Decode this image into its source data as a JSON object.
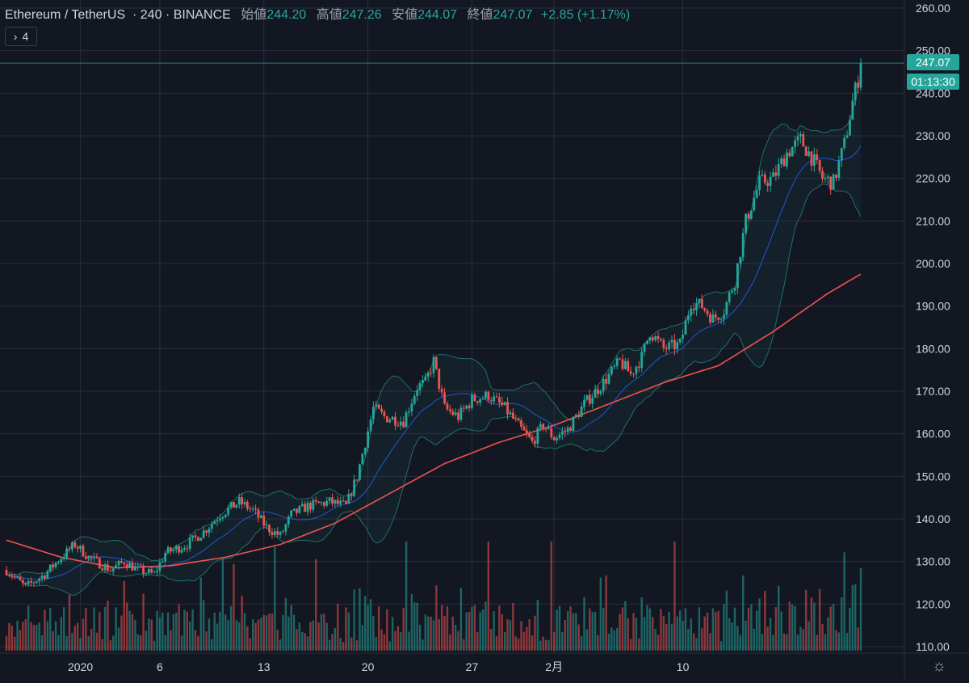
{
  "header": {
    "symbol": "Ethereum / TetherUS",
    "interval": "240",
    "exchange": "BINANCE",
    "open_label": "始値",
    "open_value": "244.20",
    "high_label": "高値",
    "high_value": "247.26",
    "low_label": "安値",
    "low_value": "244.07",
    "close_label": "終値",
    "close_value": "247.07",
    "change": "+2.85 (+1.17%)"
  },
  "indicator_toggle": {
    "label": "4"
  },
  "price_tag": "247.07",
  "countdown": "01:13:30",
  "colors": {
    "up": "#26a69a",
    "down": "#ef5350",
    "ma200": "#ef5350",
    "bb_basis": "#2962ff",
    "bb_band": "#1f6f68",
    "grid": "#2a2e39",
    "bg": "#131722"
  },
  "chart_data": {
    "type": "candlestick",
    "title": "Ethereum / TetherUS · 240 · BINANCE",
    "yaxis": {
      "min": 110,
      "max": 260,
      "ticks": [
        "260.00",
        "250.00",
        "240.00",
        "230.00",
        "220.00",
        "210.00",
        "200.00",
        "190.00",
        "180.00",
        "170.00",
        "160.00",
        "150.00",
        "140.00",
        "130.00",
        "120.00",
        "110.00"
      ]
    },
    "xaxis": {
      "ticks": [
        "2020",
        "6",
        "13",
        "20",
        "27",
        "2月",
        "10"
      ]
    },
    "price_anchors": [
      [
        0,
        128
      ],
      [
        7,
        124
      ],
      [
        14,
        127
      ],
      [
        20,
        131
      ],
      [
        25,
        134
      ],
      [
        30,
        131
      ],
      [
        38,
        128
      ],
      [
        43,
        130
      ],
      [
        48,
        128
      ],
      [
        54,
        127
      ],
      [
        58,
        132
      ],
      [
        66,
        134
      ],
      [
        72,
        137
      ],
      [
        78,
        141
      ],
      [
        85,
        144
      ],
      [
        90,
        142
      ],
      [
        95,
        138
      ],
      [
        100,
        136
      ],
      [
        104,
        141
      ],
      [
        110,
        143
      ],
      [
        118,
        144
      ],
      [
        124,
        143
      ],
      [
        128,
        150
      ],
      [
        134,
        166
      ],
      [
        138,
        164
      ],
      [
        145,
        163
      ],
      [
        150,
        171
      ],
      [
        153,
        172
      ],
      [
        156,
        177
      ],
      [
        160,
        166
      ],
      [
        165,
        164
      ],
      [
        170,
        168
      ],
      [
        176,
        169
      ],
      [
        182,
        166
      ],
      [
        188,
        161
      ],
      [
        192,
        158
      ],
      [
        196,
        162
      ],
      [
        200,
        159
      ],
      [
        205,
        161
      ],
      [
        211,
        167
      ],
      [
        218,
        172
      ],
      [
        224,
        177
      ],
      [
        228,
        174
      ],
      [
        232,
        178
      ],
      [
        235,
        184
      ],
      [
        240,
        180
      ],
      [
        246,
        181
      ],
      [
        250,
        191
      ],
      [
        254,
        190
      ],
      [
        258,
        187
      ],
      [
        262,
        189
      ],
      [
        266,
        196
      ],
      [
        270,
        210
      ],
      [
        275,
        219
      ],
      [
        280,
        220
      ],
      [
        285,
        226
      ],
      [
        290,
        229
      ],
      [
        294,
        225
      ],
      [
        298,
        220
      ],
      [
        302,
        219
      ],
      [
        306,
        228
      ],
      [
        309,
        238
      ],
      [
        312,
        246
      ]
    ],
    "ma200_anchors": [
      [
        0,
        135
      ],
      [
        20,
        131
      ],
      [
        40,
        128.5
      ],
      [
        60,
        129
      ],
      [
        80,
        131
      ],
      [
        100,
        134
      ],
      [
        120,
        139
      ],
      [
        140,
        146
      ],
      [
        160,
        153
      ],
      [
        180,
        158
      ],
      [
        200,
        162
      ],
      [
        220,
        167
      ],
      [
        240,
        172
      ],
      [
        260,
        176
      ],
      [
        280,
        184
      ],
      [
        300,
        193
      ],
      [
        312,
        197.5
      ]
    ],
    "bb_window": 20,
    "bb_mult": 2,
    "candles": 313,
    "volume": {
      "ymax_units": 133
    }
  }
}
